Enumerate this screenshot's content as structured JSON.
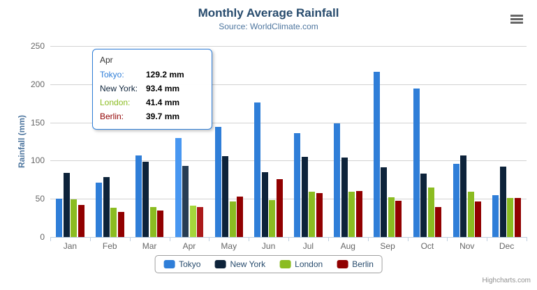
{
  "chart": {
    "title": "Monthly Average Rainfall",
    "subtitle": "Source: WorldClimate.com",
    "y_axis_title": "Rainfall (mm)",
    "credits": "Highcharts.com"
  },
  "icons": {
    "export_menu": "hamburger"
  },
  "tooltip": {
    "header": "Apr",
    "rows": [
      {
        "label": "Tokyo:",
        "value": "129.2 mm",
        "color": "#2f7ed8"
      },
      {
        "label": "New York:",
        "value": "93.4 mm",
        "color": "#0d233a"
      },
      {
        "label": "London:",
        "value": "41.4 mm",
        "color": "#8bbc21"
      },
      {
        "label": "Berlin:",
        "value": "39.7 mm",
        "color": "#910000"
      }
    ]
  },
  "legend": {
    "items": [
      {
        "name": "Tokyo",
        "color": "#2f7ed8"
      },
      {
        "name": "New York",
        "color": "#0d233a"
      },
      {
        "name": "London",
        "color": "#8bbc21"
      },
      {
        "name": "Berlin",
        "color": "#910000"
      }
    ]
  },
  "chart_data": {
    "type": "bar",
    "title": "Monthly Average Rainfall",
    "subtitle": "Source: WorldClimate.com",
    "xlabel": "",
    "ylabel": "Rainfall (mm)",
    "ylim": [
      0,
      250
    ],
    "y_tick_interval": 50,
    "grid": true,
    "legend_position": "bottom-center",
    "highlighted_category": "Apr",
    "categories": [
      "Jan",
      "Feb",
      "Mar",
      "Apr",
      "May",
      "Jun",
      "Jul",
      "Aug",
      "Sep",
      "Oct",
      "Nov",
      "Dec"
    ],
    "series": [
      {
        "name": "Tokyo",
        "color": "#2f7ed8",
        "hover_color": "#4897f1",
        "values": [
          49.9,
          71.5,
          106.4,
          129.2,
          144.0,
          176.0,
          135.6,
          148.5,
          216.4,
          194.1,
          95.6,
          54.4
        ]
      },
      {
        "name": "New York",
        "color": "#0d233a",
        "hover_color": "#273d54",
        "values": [
          83.6,
          78.8,
          98.5,
          93.4,
          106.0,
          84.5,
          105.0,
          104.3,
          91.2,
          83.5,
          106.6,
          92.3
        ]
      },
      {
        "name": "London",
        "color": "#8bbc21",
        "hover_color": "#a5d63b",
        "values": [
          48.9,
          38.8,
          39.3,
          41.4,
          47.0,
          48.3,
          59.0,
          59.6,
          52.4,
          65.2,
          59.3,
          51.2
        ]
      },
      {
        "name": "Berlin",
        "color": "#910000",
        "hover_color": "#ab1a1a",
        "values": [
          42.4,
          33.2,
          34.5,
          39.7,
          52.6,
          75.5,
          57.4,
          60.4,
          47.6,
          39.1,
          46.8,
          51.1
        ]
      }
    ]
  }
}
